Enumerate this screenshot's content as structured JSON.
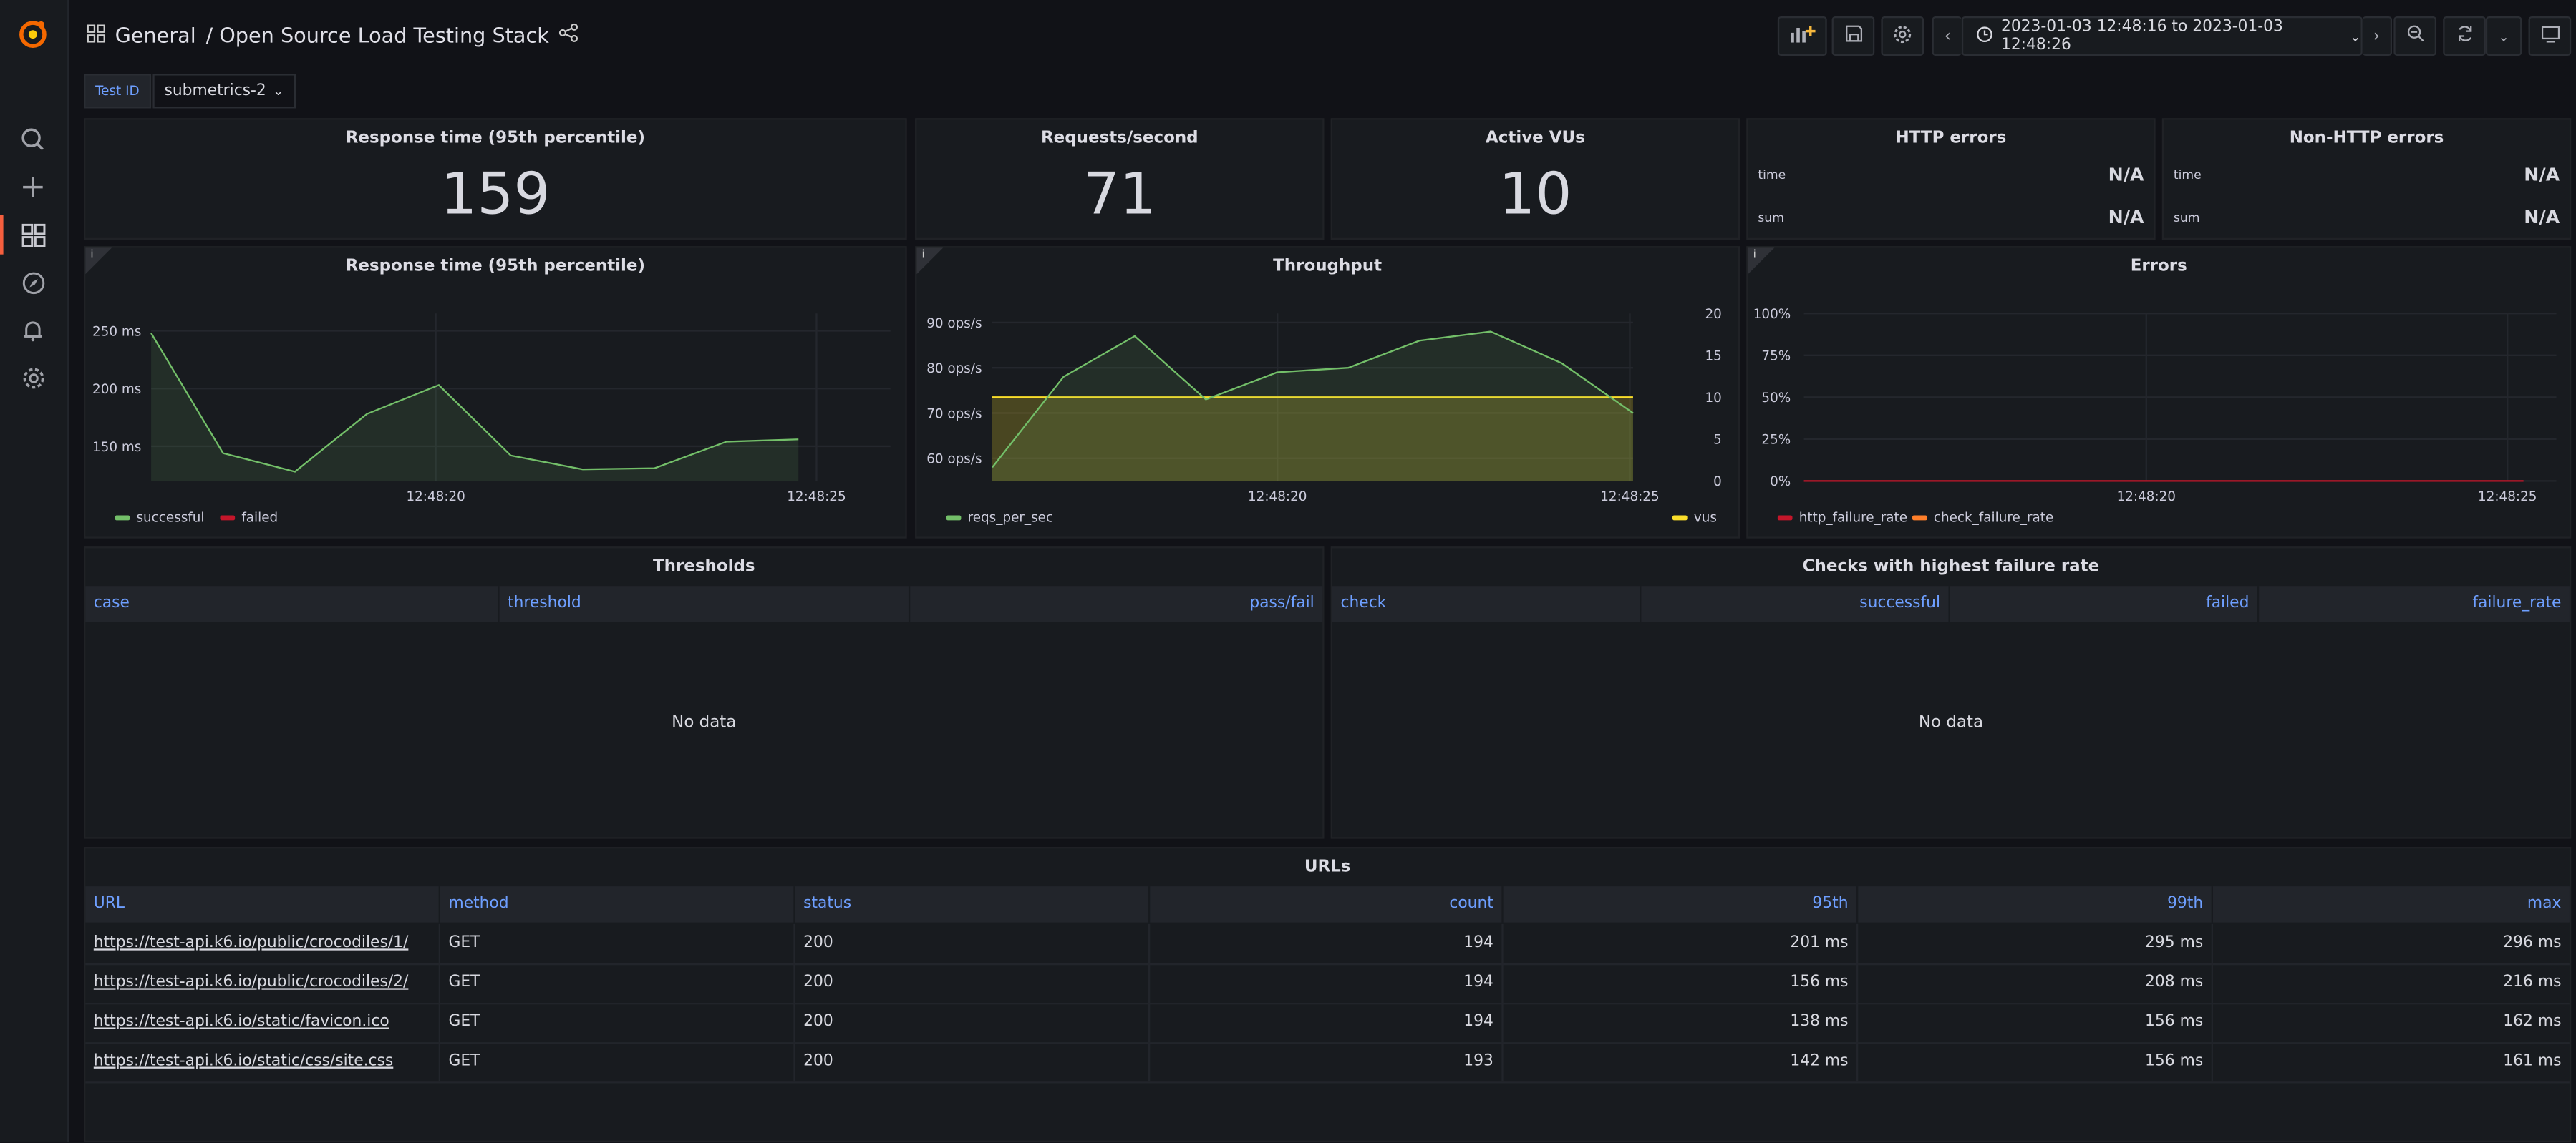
{
  "header": {
    "folder": "General",
    "title": "/ Open Source Load Testing Stack",
    "time_range": "2023-01-03 12:48:16 to 2023-01-03 12:48:26"
  },
  "variables": {
    "label": "Test ID",
    "value": "submetrics-2"
  },
  "stats": {
    "response_time": {
      "title": "Response time (95th percentile)",
      "value": "159"
    },
    "rps": {
      "title": "Requests/second",
      "value": "71"
    },
    "vus": {
      "title": "Active VUs",
      "value": "10"
    },
    "http_errors": {
      "title": "HTTP errors",
      "rows": [
        {
          "k": "time",
          "v": "N/A"
        },
        {
          "k": "sum",
          "v": "N/A"
        }
      ]
    },
    "non_http_errors": {
      "title": "Non-HTTP errors",
      "rows": [
        {
          "k": "time",
          "v": "N/A"
        },
        {
          "k": "sum",
          "v": "N/A"
        }
      ]
    }
  },
  "chart_data": [
    {
      "type": "line",
      "title": "Response time (95th percentile)",
      "x_ticks": [
        "12:48:20",
        "12:48:25"
      ],
      "y_ticks": [
        "250 ms",
        "200 ms",
        "150 ms"
      ],
      "ylim": [
        120,
        265
      ],
      "series": [
        {
          "name": "successful",
          "color": "#73bf69",
          "values": [
            248,
            144,
            128,
            178,
            203,
            142,
            130,
            131,
            154,
            156
          ]
        },
        {
          "name": "failed",
          "color": "#c4162a",
          "values": []
        }
      ]
    },
    {
      "type": "line",
      "title": "Throughput",
      "x_ticks": [
        "12:48:20",
        "12:48:25"
      ],
      "y_ticks_left": [
        "90 ops/s",
        "80 ops/s",
        "70 ops/s",
        "60 ops/s"
      ],
      "y_ticks_right": [
        "20",
        "15",
        "10",
        "5",
        "0"
      ],
      "series": [
        {
          "name": "reqs_per_sec",
          "color": "#73bf69",
          "axis": "left",
          "values": [
            58,
            78,
            87,
            73,
            79,
            80,
            86,
            88,
            81,
            70
          ]
        },
        {
          "name": "vus",
          "color": "#fade2a",
          "axis": "right",
          "values": [
            10,
            10,
            10,
            10,
            10,
            10,
            10,
            10,
            10,
            10
          ]
        }
      ]
    },
    {
      "type": "line",
      "title": "Errors",
      "x_ticks": [
        "12:48:20",
        "12:48:25"
      ],
      "y_ticks": [
        "100%",
        "75%",
        "50%",
        "25%",
        "0%"
      ],
      "series": [
        {
          "name": "http_failure_rate",
          "color": "#c4162a",
          "values": [
            0,
            0,
            0,
            0,
            0,
            0,
            0,
            0,
            0,
            0
          ]
        },
        {
          "name": "check_failure_rate",
          "color": "#ff7f2a",
          "values": []
        }
      ]
    }
  ],
  "thresholds": {
    "title": "Thresholds",
    "columns": [
      "case",
      "threshold",
      "pass/fail"
    ],
    "empty": "No data"
  },
  "checks": {
    "title": "Checks with highest failure rate",
    "columns": [
      "check",
      "successful",
      "failed",
      "failure_rate"
    ],
    "empty": "No data"
  },
  "urls": {
    "title": "URLs",
    "columns": [
      "URL",
      "method",
      "status",
      "count",
      "95th",
      "99th",
      "max"
    ],
    "rows": [
      [
        "https://test-api.k6.io/public/crocodiles/1/",
        "GET",
        "200",
        "194",
        "201 ms",
        "295 ms",
        "296 ms"
      ],
      [
        "https://test-api.k6.io/public/crocodiles/2/",
        "GET",
        "200",
        "194",
        "156 ms",
        "208 ms",
        "216 ms"
      ],
      [
        "https://test-api.k6.io/static/favicon.ico",
        "GET",
        "200",
        "194",
        "138 ms",
        "156 ms",
        "162 ms"
      ],
      [
        "https://test-api.k6.io/static/css/site.css",
        "GET",
        "200",
        "193",
        "142 ms",
        "156 ms",
        "161 ms"
      ]
    ]
  }
}
